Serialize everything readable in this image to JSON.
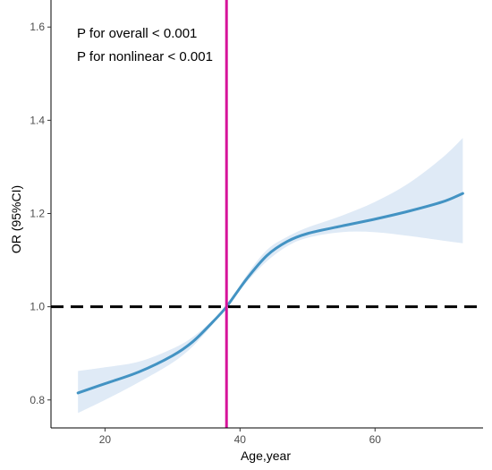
{
  "chart_data": {
    "type": "line",
    "title": "",
    "xlabel": "Age,year",
    "ylabel": "OR (95%CI)",
    "xlim": [
      12,
      76
    ],
    "ylim": [
      0.74,
      1.635
    ],
    "xticks": [
      20,
      40,
      60
    ],
    "yticks": [
      0.8,
      1.0,
      1.2,
      1.4,
      1.6
    ],
    "xtick_labels": [
      "20",
      "40",
      "60"
    ],
    "ytick_labels": [
      "0.8",
      "1.0",
      "1.2",
      "1.4",
      "1.6"
    ],
    "grid": false,
    "annotations": [
      "P for overall < 0.001",
      "P for nonlinear < 0.001"
    ],
    "reference_hline": {
      "y": 1.0,
      "style": "dashed",
      "color": "#000000"
    },
    "reference_vline": {
      "x": 38,
      "color": "#d6139a"
    },
    "series": [
      {
        "color": "#4393c3",
        "band_color": "#dfeaf6",
        "x": [
          16,
          20,
          25,
          30,
          33,
          36,
          38,
          41,
          44,
          47,
          50,
          55,
          60,
          65,
          70,
          73
        ],
        "y": [
          0.815,
          0.835,
          0.86,
          0.895,
          0.925,
          0.968,
          1.0,
          1.06,
          1.11,
          1.14,
          1.157,
          1.173,
          1.188,
          1.205,
          1.225,
          1.243
        ],
        "lower": [
          0.772,
          0.8,
          0.838,
          0.88,
          0.915,
          0.963,
          1.0,
          1.053,
          1.098,
          1.13,
          1.148,
          1.16,
          1.16,
          1.152,
          1.142,
          1.136
        ],
        "upper": [
          0.862,
          0.87,
          0.882,
          0.91,
          0.935,
          0.972,
          1.0,
          1.068,
          1.122,
          1.15,
          1.17,
          1.195,
          1.225,
          1.265,
          1.32,
          1.362
        ]
      }
    ]
  }
}
